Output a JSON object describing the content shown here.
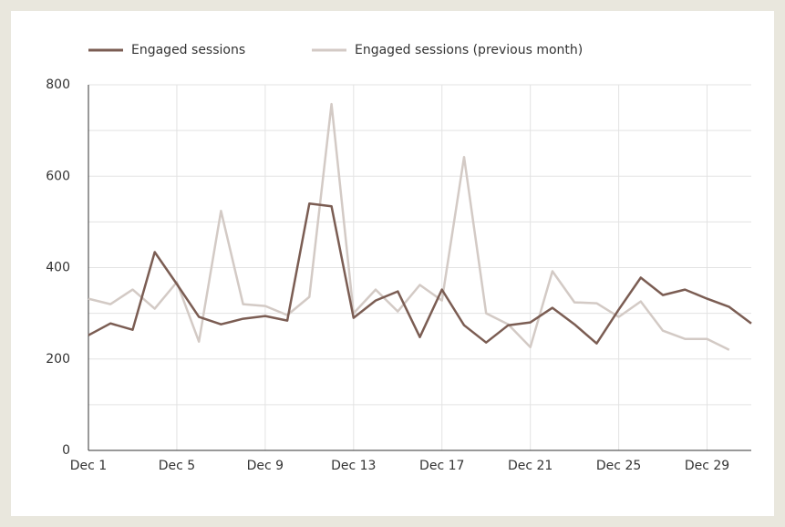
{
  "chart_data": {
    "type": "line",
    "categories": [
      "Dec 1",
      null,
      null,
      null,
      "Dec 5",
      null,
      null,
      null,
      "Dec 9",
      null,
      null,
      null,
      "Dec 13",
      null,
      null,
      null,
      "Dec 17",
      null,
      null,
      null,
      "Dec 21",
      null,
      null,
      null,
      "Dec 25",
      null,
      null,
      null,
      "Dec 29",
      null,
      null
    ],
    "series": [
      {
        "name": "Engaged sessions",
        "color": "#7b5d53",
        "values": [
          252,
          278,
          264,
          434,
          364,
          292,
          276,
          288,
          294,
          284,
          540,
          534,
          290,
          328,
          348,
          248,
          352,
          274,
          236,
          274,
          280,
          312,
          276,
          234,
          308,
          378,
          340,
          352,
          332,
          314,
          278
        ]
      },
      {
        "name": "Engaged sessions (previous month)",
        "color": "#d3cac5",
        "values": [
          332,
          320,
          352,
          310,
          368,
          238,
          524,
          320,
          316,
          296,
          336,
          758,
          300,
          352,
          304,
          362,
          328,
          642,
          300,
          276,
          226,
          392,
          324,
          322,
          292,
          326,
          262,
          244,
          244,
          220,
          null
        ]
      }
    ],
    "ylim": [
      0,
      800
    ],
    "yticks": [
      0,
      200,
      400,
      600,
      800
    ],
    "ygrid_ticks": [
      0,
      100,
      200,
      300,
      400,
      500,
      600,
      700,
      800
    ],
    "grid": true,
    "legend": "top"
  }
}
